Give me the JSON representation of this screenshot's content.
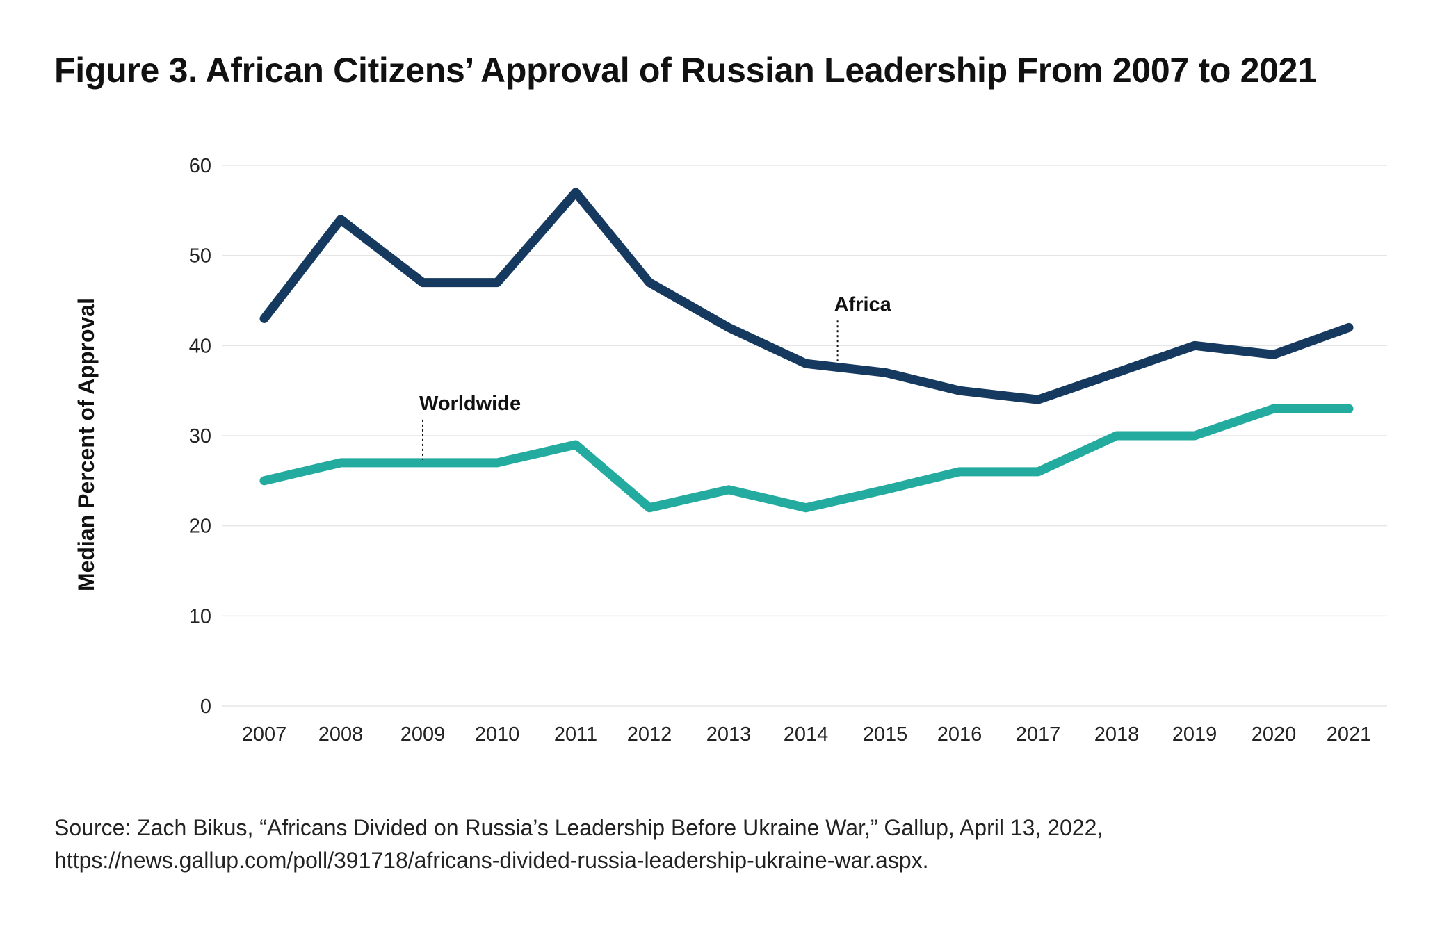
{
  "title": "Figure 3. African Citizens’ Approval of Russian Leadership From 2007 to 2021",
  "source": "Source: Zach Bikus, “Africans Divided on Russia’s Leadership Before Ukraine War,” Gallup, April 13, 2022, https://news.gallup.com/poll/391718/africans-divided-russia-leadership-ukraine-war.aspx.",
  "chart_data": {
    "type": "line",
    "title": "Figure 3. African Citizens’ Approval of Russian Leadership From 2007 to 2021",
    "xlabel": "",
    "ylabel": "Median Percent of Approval",
    "ylim": [
      0,
      60
    ],
    "yticks": [
      0,
      10,
      20,
      30,
      40,
      50,
      60
    ],
    "grid": true,
    "legend": "none",
    "x": [
      "2007",
      "2008",
      "2009",
      "2010",
      "2011",
      "2012",
      "2013",
      "2014",
      "2015",
      "2016",
      "2017",
      "2018",
      "2019",
      "2020",
      "2021"
    ],
    "series": [
      {
        "name": "Africa",
        "color": "#163a5f",
        "values": [
          43,
          54,
          47,
          47,
          57,
          47,
          42,
          38,
          37,
          35,
          34,
          37,
          40,
          39,
          42
        ]
      },
      {
        "name": "Worldwide",
        "color": "#24aba0",
        "values": [
          25,
          27,
          27,
          27,
          29,
          22,
          24,
          22,
          24,
          26,
          26,
          30,
          30,
          33,
          33
        ]
      }
    ],
    "annotations": [
      {
        "text": "Africa",
        "series": "Africa",
        "at_x": "2014.4",
        "value": 38
      },
      {
        "text": "Worldwide",
        "series": "Worldwide",
        "at_x": "2009",
        "value": 27
      }
    ]
  }
}
